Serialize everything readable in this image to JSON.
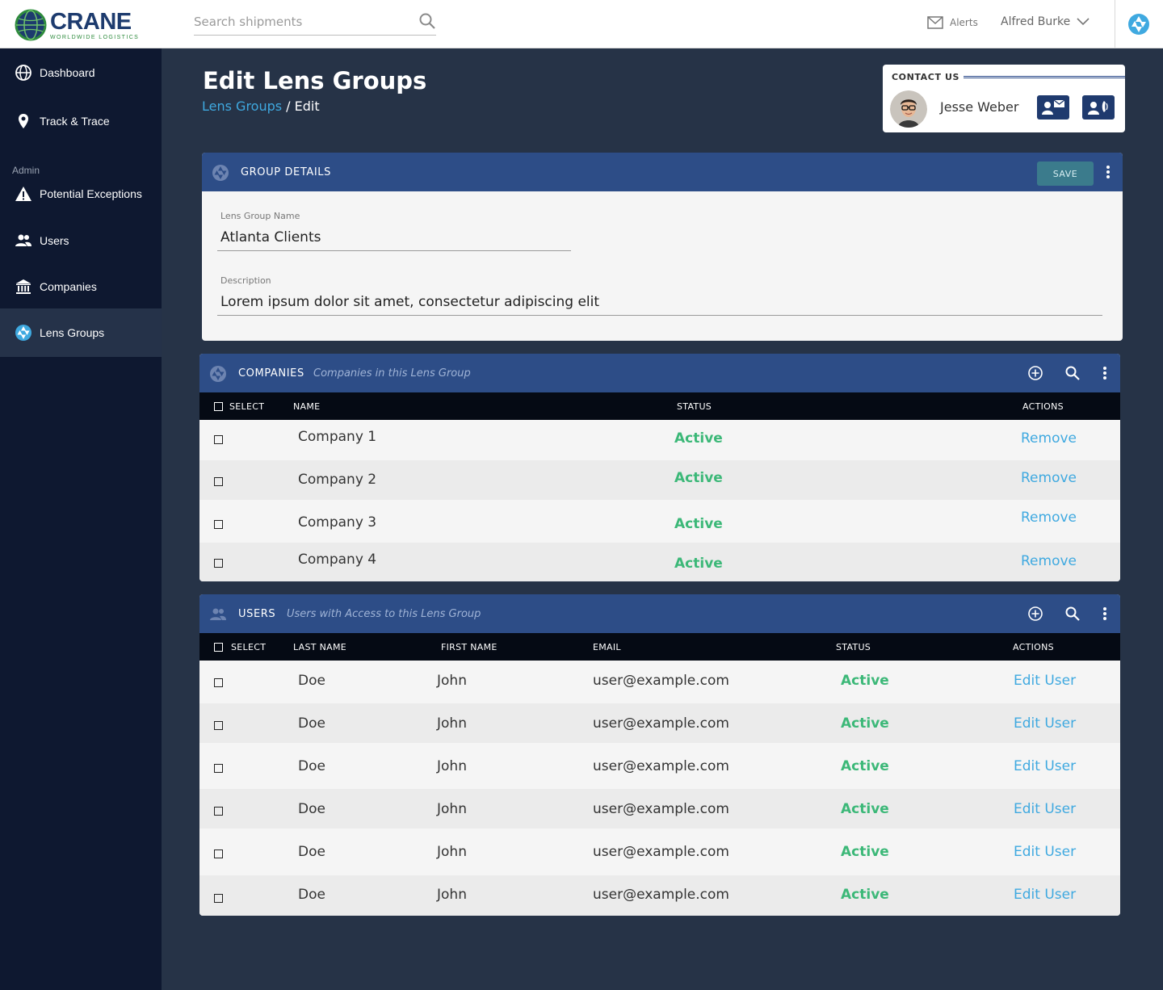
{
  "brand": {
    "name": "CRANE",
    "tagline": "WORLDWIDE LOGISTICS"
  },
  "search": {
    "placeholder": "Search shipments"
  },
  "header": {
    "alerts_label": "Alerts",
    "user_name": "Alfred Burke"
  },
  "sidebar": {
    "items": [
      {
        "label": "Dashboard",
        "icon": "globe-icon"
      },
      {
        "label": "Track & Trace",
        "icon": "location-pin-icon"
      },
      {
        "label": "Potential Exceptions",
        "icon": "warning-icon"
      },
      {
        "label": "Users",
        "icon": "users-icon"
      },
      {
        "label": "Companies",
        "icon": "bank-icon"
      },
      {
        "label": "Lens Groups",
        "icon": "aperture-icon"
      }
    ],
    "section_label": "Admin",
    "active": "Lens Groups"
  },
  "page": {
    "title": "Edit Lens Groups",
    "breadcrumb": {
      "parent": "Lens Groups",
      "separator": " / ",
      "current": "Edit"
    }
  },
  "contact": {
    "label": "CONTACT US",
    "name": "Jesse Weber"
  },
  "group_details": {
    "title": "GROUP DETAILS",
    "save_label": "SAVE",
    "name_label": "Lens Group Name",
    "name_value": "Atlanta Clients",
    "description_label": "Description",
    "description_value": "Lorem ipsum dolor sit amet, consectetur adipiscing elit"
  },
  "companies": {
    "title": "COMPANIES",
    "subtitle": "Companies in this Lens Group",
    "columns": {
      "select": "SELECT",
      "name": "NAME",
      "status": "STATUS",
      "actions": "ACTIONS"
    },
    "rows": [
      {
        "name": "Company 1",
        "status": "Active",
        "action": "Remove"
      },
      {
        "name": "Company 2",
        "status": "Active",
        "action": "Remove"
      },
      {
        "name": "Company 3",
        "status": "Active",
        "action": "Remove"
      },
      {
        "name": "Company 4",
        "status": "Active",
        "action": "Remove"
      }
    ]
  },
  "users": {
    "title": "USERS",
    "subtitle": "Users with Access to this Lens Group",
    "columns": {
      "select": "SELECT",
      "last_name": "LAST NAME",
      "first_name": "FIRST NAME",
      "email": "EMAIL",
      "status": "STATUS",
      "actions": "ACTIONS"
    },
    "rows": [
      {
        "last_name": "Doe",
        "first_name": "John",
        "email": "user@example.com",
        "status": "Active",
        "action": "Edit User"
      },
      {
        "last_name": "Doe",
        "first_name": "John",
        "email": "user@example.com",
        "status": "Active",
        "action": "Edit User"
      },
      {
        "last_name": "Doe",
        "first_name": "John",
        "email": "user@example.com",
        "status": "Active",
        "action": "Edit User"
      },
      {
        "last_name": "Doe",
        "first_name": "John",
        "email": "user@example.com",
        "status": "Active",
        "action": "Edit User"
      },
      {
        "last_name": "Doe",
        "first_name": "John",
        "email": "user@example.com",
        "status": "Active",
        "action": "Edit User"
      },
      {
        "last_name": "Doe",
        "first_name": "John",
        "email": "user@example.com",
        "status": "Active",
        "action": "Edit User"
      }
    ]
  },
  "colors": {
    "header_blue": "#2d4d87",
    "sidebar": "#0e1830",
    "status_active": "#3cb878",
    "link": "#3fa9e0",
    "save_button": "#3b7b8c"
  }
}
